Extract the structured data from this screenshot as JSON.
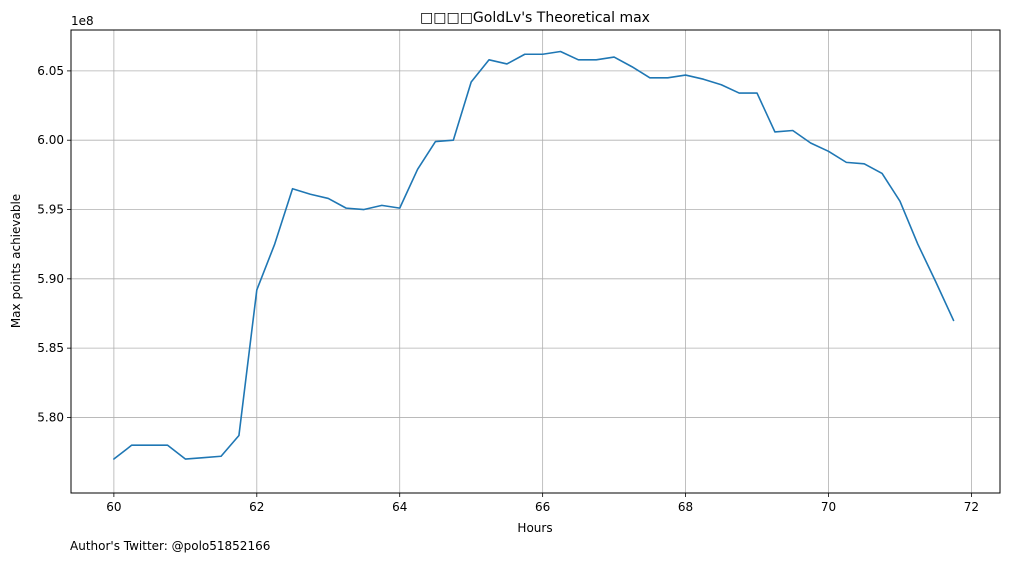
{
  "chart_data": {
    "type": "line",
    "title": "□□□□GoldLv's Theoretical max",
    "xlabel": "Hours",
    "ylabel": "Max points achievable",
    "y_offset_label": "1e8",
    "footer": "Author's Twitter: @polo51852166",
    "xlim": [
      59.4,
      72.4
    ],
    "ylim": [
      5.7455,
      6.0795
    ],
    "x_ticks": [
      60,
      62,
      64,
      66,
      68,
      70,
      72
    ],
    "y_ticks": [
      5.8,
      5.85,
      5.9,
      5.95,
      6.0,
      6.05
    ],
    "x_tick_labels": [
      "60",
      "62",
      "64",
      "66",
      "68",
      "70",
      "72"
    ],
    "y_tick_labels": [
      "5.80",
      "5.85",
      "5.90",
      "5.95",
      "6.00",
      "6.05"
    ],
    "grid": true,
    "color": "#1f77b4",
    "x": [
      60.0,
      60.25,
      60.5,
      60.75,
      61.0,
      61.25,
      61.5,
      61.75,
      62.0,
      62.25,
      62.5,
      62.75,
      63.0,
      63.25,
      63.5,
      63.75,
      64.0,
      64.25,
      64.5,
      64.75,
      65.0,
      65.25,
      65.5,
      65.75,
      66.0,
      66.25,
      66.5,
      66.75,
      67.0,
      67.25,
      67.5,
      67.75,
      68.0,
      68.25,
      68.5,
      68.75,
      69.0,
      69.25,
      69.5,
      69.75,
      70.0,
      70.25,
      70.5,
      70.75,
      71.0,
      71.25,
      71.5,
      71.75
    ],
    "series": [
      {
        "values": [
          5.77,
          5.78,
          5.78,
          5.78,
          5.77,
          5.771,
          5.772,
          5.787,
          5.892,
          5.925,
          5.965,
          5.961,
          5.958,
          5.951,
          5.95,
          5.953,
          5.951,
          5.979,
          5.999,
          6.0,
          6.042,
          6.058,
          6.055,
          6.062,
          6.062,
          6.064,
          6.058,
          6.058,
          6.06,
          6.053,
          6.045,
          6.045,
          6.047,
          6.044,
          6.04,
          6.034,
          6.034,
          6.006,
          6.007,
          5.998,
          5.992,
          5.984,
          5.983,
          5.976,
          5.956,
          5.925,
          5.898,
          5.87
        ]
      }
    ]
  }
}
